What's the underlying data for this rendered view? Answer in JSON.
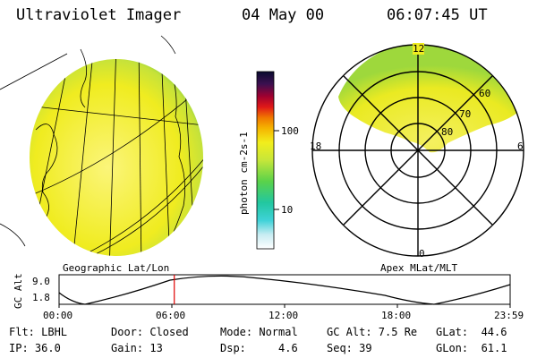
{
  "header": {
    "instrument": "Ultraviolet Imager",
    "date": "04 May 00",
    "time": "06:07:45 UT"
  },
  "left_panel": {
    "caption": "Geographic Lat/Lon"
  },
  "right_panel": {
    "caption": "Apex MLat/MLT",
    "mlt_labels": {
      "top": "12",
      "left": "18",
      "right": "6",
      "bottom": "0"
    },
    "lat_labels": [
      "60",
      "70",
      "80"
    ]
  },
  "colorbar": {
    "unit_label": "photon cm-2s-1",
    "ticks": [
      "100",
      "10"
    ]
  },
  "altitude_plot": {
    "ylabel": "GC Alt",
    "yticks": [
      "9.0",
      "1.8"
    ],
    "xticks": [
      "00:00",
      "06:00",
      "12:00",
      "18:00",
      "23:59"
    ],
    "current_time_hours": 6.13
  },
  "info": {
    "filter": "Flt: LBHL",
    "ip": "IP: 36.0",
    "door": "Door: Closed",
    "gain": "Gain: 13",
    "mode": "Mode: Normal",
    "dsp": "Dsp:     4.6",
    "gc_alt": "GC Alt: 7.5 Re",
    "seq": "Seq: 39",
    "glat": "GLat:  44.6",
    "glon": "GLon:  61.1"
  },
  "colors": {
    "glow": "#f2ee1c",
    "glow_edge": "#8ed33a",
    "marker": "#e00000"
  }
}
